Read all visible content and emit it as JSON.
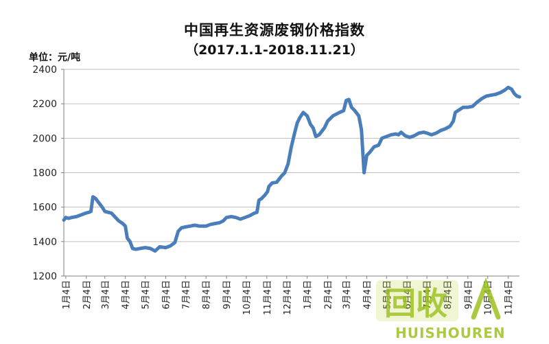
{
  "chart_data": {
    "type": "line",
    "title": "中国再生资源废钢价格指数",
    "subtitle": "（2017.1.1-2018.11.21）",
    "unit_label": "单位：元/吨",
    "ylim": [
      1200,
      2400
    ],
    "yticks": [
      1200,
      1400,
      1600,
      1800,
      2000,
      2200,
      2400
    ],
    "grid": true,
    "x_tick_labels": [
      "1月4日",
      "2月4日",
      "3月4日",
      "4月4日",
      "5月4日",
      "6月4日",
      "7月4日",
      "8月4日",
      "9月4日",
      "10月4日",
      "11月4日",
      "12月4日",
      "1月4日",
      "2月4日",
      "3月4日",
      "4月4日",
      "5月4日",
      "6月4日",
      "7月4日",
      "8月4日",
      "9月4日",
      "10月4日",
      "11月4日"
    ],
    "x_tick_dates": [
      "2017-01-04",
      "2017-02-04",
      "2017-03-04",
      "2017-04-04",
      "2017-05-04",
      "2017-06-04",
      "2017-07-04",
      "2017-08-04",
      "2017-09-04",
      "2017-10-04",
      "2017-11-04",
      "2017-12-04",
      "2018-01-04",
      "2018-02-04",
      "2018-03-04",
      "2018-04-04",
      "2018-05-04",
      "2018-06-04",
      "2018-07-04",
      "2018-08-04",
      "2018-09-04",
      "2018-10-04",
      "2018-11-04"
    ],
    "x_start": "2017-01-01",
    "x_end": "2018-11-21",
    "series": [
      {
        "color": "#4a7ebb",
        "points": [
          [
            "2017-01-01",
            1525
          ],
          [
            "2017-01-04",
            1540
          ],
          [
            "2017-01-08",
            1535
          ],
          [
            "2017-01-13",
            1540
          ],
          [
            "2017-01-20",
            1545
          ],
          [
            "2017-01-27",
            1555
          ],
          [
            "2017-02-03",
            1565
          ],
          [
            "2017-02-08",
            1570
          ],
          [
            "2017-02-11",
            1575
          ],
          [
            "2017-02-14",
            1660
          ],
          [
            "2017-02-18",
            1650
          ],
          [
            "2017-02-23",
            1625
          ],
          [
            "2017-02-28",
            1600
          ],
          [
            "2017-03-04",
            1575
          ],
          [
            "2017-03-09",
            1570
          ],
          [
            "2017-03-14",
            1565
          ],
          [
            "2017-03-19",
            1545
          ],
          [
            "2017-03-25",
            1520
          ],
          [
            "2017-03-31",
            1505
          ],
          [
            "2017-04-04",
            1490
          ],
          [
            "2017-04-07",
            1420
          ],
          [
            "2017-04-11",
            1400
          ],
          [
            "2017-04-15",
            1360
          ],
          [
            "2017-04-20",
            1355
          ],
          [
            "2017-04-26",
            1360
          ],
          [
            "2017-05-04",
            1365
          ],
          [
            "2017-05-12",
            1360
          ],
          [
            "2017-05-19",
            1345
          ],
          [
            "2017-05-26",
            1370
          ],
          [
            "2017-06-04",
            1365
          ],
          [
            "2017-06-11",
            1375
          ],
          [
            "2017-06-18",
            1395
          ],
          [
            "2017-06-23",
            1460
          ],
          [
            "2017-06-28",
            1480
          ],
          [
            "2017-07-04",
            1485
          ],
          [
            "2017-07-11",
            1490
          ],
          [
            "2017-07-18",
            1495
          ],
          [
            "2017-07-25",
            1490
          ],
          [
            "2017-08-04",
            1490
          ],
          [
            "2017-08-11",
            1500
          ],
          [
            "2017-08-18",
            1505
          ],
          [
            "2017-08-25",
            1510
          ],
          [
            "2017-08-30",
            1520
          ],
          [
            "2017-09-04",
            1540
          ],
          [
            "2017-09-11",
            1545
          ],
          [
            "2017-09-18",
            1540
          ],
          [
            "2017-09-25",
            1530
          ],
          [
            "2017-10-02",
            1540
          ],
          [
            "2017-10-09",
            1550
          ],
          [
            "2017-10-16",
            1565
          ],
          [
            "2017-10-20",
            1570
          ],
          [
            "2017-10-23",
            1640
          ],
          [
            "2017-10-27",
            1650
          ],
          [
            "2017-11-01",
            1670
          ],
          [
            "2017-11-05",
            1690
          ],
          [
            "2017-11-07",
            1720
          ],
          [
            "2017-11-12",
            1740
          ],
          [
            "2017-11-19",
            1745
          ],
          [
            "2017-11-26",
            1780
          ],
          [
            "2017-12-01",
            1800
          ],
          [
            "2017-12-06",
            1850
          ],
          [
            "2017-12-11",
            1950
          ],
          [
            "2017-12-16",
            2030
          ],
          [
            "2017-12-20",
            2090
          ],
          [
            "2017-12-24",
            2120
          ],
          [
            "2017-12-29",
            2150
          ],
          [
            "2018-01-04",
            2130
          ],
          [
            "2018-01-09",
            2080
          ],
          [
            "2018-01-13",
            2060
          ],
          [
            "2018-01-17",
            2010
          ],
          [
            "2018-01-22",
            2020
          ],
          [
            "2018-01-30",
            2060
          ],
          [
            "2018-02-04",
            2100
          ],
          [
            "2018-02-12",
            2130
          ],
          [
            "2018-02-22",
            2150
          ],
          [
            "2018-02-28",
            2160
          ],
          [
            "2018-03-04",
            2220
          ],
          [
            "2018-03-08",
            2225
          ],
          [
            "2018-03-12",
            2180
          ],
          [
            "2018-03-17",
            2160
          ],
          [
            "2018-03-23",
            2130
          ],
          [
            "2018-03-27",
            2050
          ],
          [
            "2018-03-31",
            1800
          ],
          [
            "2018-04-04",
            1900
          ],
          [
            "2018-04-09",
            1920
          ],
          [
            "2018-04-15",
            1950
          ],
          [
            "2018-04-22",
            1960
          ],
          [
            "2018-04-27",
            2000
          ],
          [
            "2018-05-04",
            2010
          ],
          [
            "2018-05-11",
            2020
          ],
          [
            "2018-05-18",
            2025
          ],
          [
            "2018-05-22",
            2020
          ],
          [
            "2018-05-26",
            2035
          ],
          [
            "2018-06-01",
            2015
          ],
          [
            "2018-06-08",
            2005
          ],
          [
            "2018-06-15",
            2015
          ],
          [
            "2018-06-22",
            2030
          ],
          [
            "2018-06-29",
            2035
          ],
          [
            "2018-07-04",
            2030
          ],
          [
            "2018-07-11",
            2020
          ],
          [
            "2018-07-18",
            2030
          ],
          [
            "2018-07-25",
            2045
          ],
          [
            "2018-08-01",
            2055
          ],
          [
            "2018-08-08",
            2070
          ],
          [
            "2018-08-13",
            2100
          ],
          [
            "2018-08-16",
            2150
          ],
          [
            "2018-08-22",
            2165
          ],
          [
            "2018-08-28",
            2180
          ],
          [
            "2018-09-04",
            2180
          ],
          [
            "2018-09-11",
            2185
          ],
          [
            "2018-09-18",
            2210
          ],
          [
            "2018-09-25",
            2230
          ],
          [
            "2018-10-02",
            2245
          ],
          [
            "2018-10-09",
            2250
          ],
          [
            "2018-10-16",
            2255
          ],
          [
            "2018-10-23",
            2265
          ],
          [
            "2018-10-30",
            2280
          ],
          [
            "2018-11-04",
            2295
          ],
          [
            "2018-11-09",
            2285
          ],
          [
            "2018-11-13",
            2260
          ],
          [
            "2018-11-17",
            2245
          ],
          [
            "2018-11-21",
            2240
          ]
        ]
      }
    ]
  },
  "watermark": {
    "logo_text": "回收",
    "brand_text": "HUISHOUREN"
  }
}
